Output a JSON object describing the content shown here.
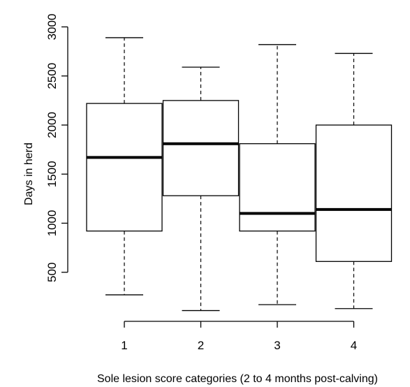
{
  "chart_data": {
    "type": "box",
    "xlabel": "Sole lesion score categories (2 to 4 months post-calving)",
    "ylabel": "Days in herd",
    "categories": [
      "1",
      "2",
      "3",
      "4"
    ],
    "ylim": [
      0,
      3000
    ],
    "yticks": [
      500,
      1000,
      1500,
      2000,
      2500,
      3000
    ],
    "boxes": [
      {
        "category": "1",
        "min": 270,
        "q1": 920,
        "median": 1670,
        "q3": 2220,
        "max": 2890
      },
      {
        "category": "2",
        "min": 110,
        "q1": 1280,
        "median": 1810,
        "q3": 2250,
        "max": 2590
      },
      {
        "category": "3",
        "min": 170,
        "q1": 920,
        "median": 1100,
        "q3": 1810,
        "max": 2820
      },
      {
        "category": "4",
        "min": 130,
        "q1": 610,
        "median": 1140,
        "q3": 2000,
        "max": 2730
      }
    ],
    "grid": false,
    "legend": "none",
    "colors": {
      "stroke": "#000000",
      "box_fill": "#ffffff"
    }
  }
}
